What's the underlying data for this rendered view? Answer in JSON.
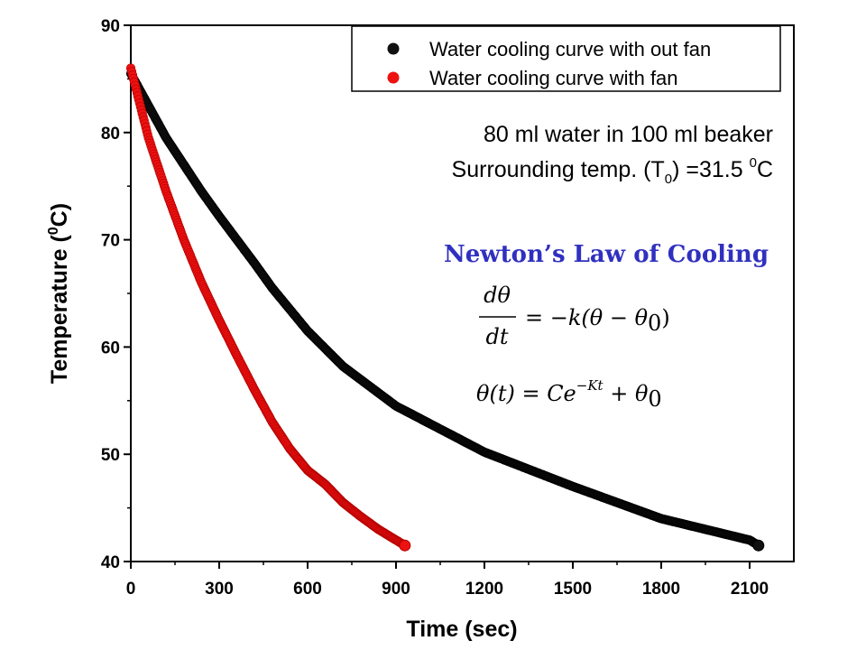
{
  "colors": {
    "black_series": "#111111",
    "red_series": "#ee1111",
    "law_title": "#3030c0"
  },
  "annotations": {
    "line1": "80 ml water in 100 ml beaker",
    "line2_prefix": "Surrounding temp. (T",
    "line2_sub": "0",
    "line2_mid": ") =31.5 ",
    "line2_sup": "0",
    "line2_unit": "C",
    "law_title": "Newton’s Law of Cooling",
    "eq1_num": "dθ",
    "eq1_den": "dt",
    "eq1_rhs_a": "= −k(θ  − θ",
    "eq1_rhs_sub": "0",
    "eq1_rhs_b": ")",
    "eq2_lhs": "θ(t) = Ce",
    "eq2_sup": "−Kt",
    "eq2_rhs_a": " + θ",
    "eq2_rhs_sub": "0"
  },
  "chart_data": {
    "type": "scatter",
    "xlabel": "Time (sec)",
    "ylabel_prefix": "Temperature (",
    "ylabel_sup": "0",
    "ylabel_suffix": "C)",
    "xlim": [
      0,
      2250
    ],
    "ylim": [
      40,
      90
    ],
    "xticks": [
      0,
      300,
      600,
      900,
      1200,
      1500,
      1800,
      2100
    ],
    "yticks": [
      40,
      50,
      60,
      70,
      80,
      90
    ],
    "legend_position": "top-right",
    "series": [
      {
        "name": "Water cooling curve with out fan",
        "color": "#111111",
        "x": [
          0,
          60,
          120,
          240,
          300,
          360,
          420,
          480,
          600,
          720,
          900,
          1200,
          1500,
          1800,
          2100,
          2130
        ],
        "y": [
          85.5,
          82.5,
          79.5,
          74.5,
          72.2,
          70.0,
          67.8,
          65.5,
          61.5,
          58.2,
          54.5,
          50.2,
          47.0,
          44.0,
          42.0,
          41.5
        ]
      },
      {
        "name": "Water cooling curve with fan",
        "color": "#ee1111",
        "x": [
          0,
          60,
          120,
          180,
          240,
          300,
          360,
          420,
          480,
          540,
          600,
          660,
          720,
          780,
          840,
          900,
          930
        ],
        "y": [
          86.0,
          79.5,
          74.5,
          70.0,
          66.0,
          62.5,
          59.2,
          56.0,
          53.0,
          50.5,
          48.5,
          47.2,
          45.5,
          44.2,
          43.0,
          42.0,
          41.5
        ]
      }
    ]
  }
}
